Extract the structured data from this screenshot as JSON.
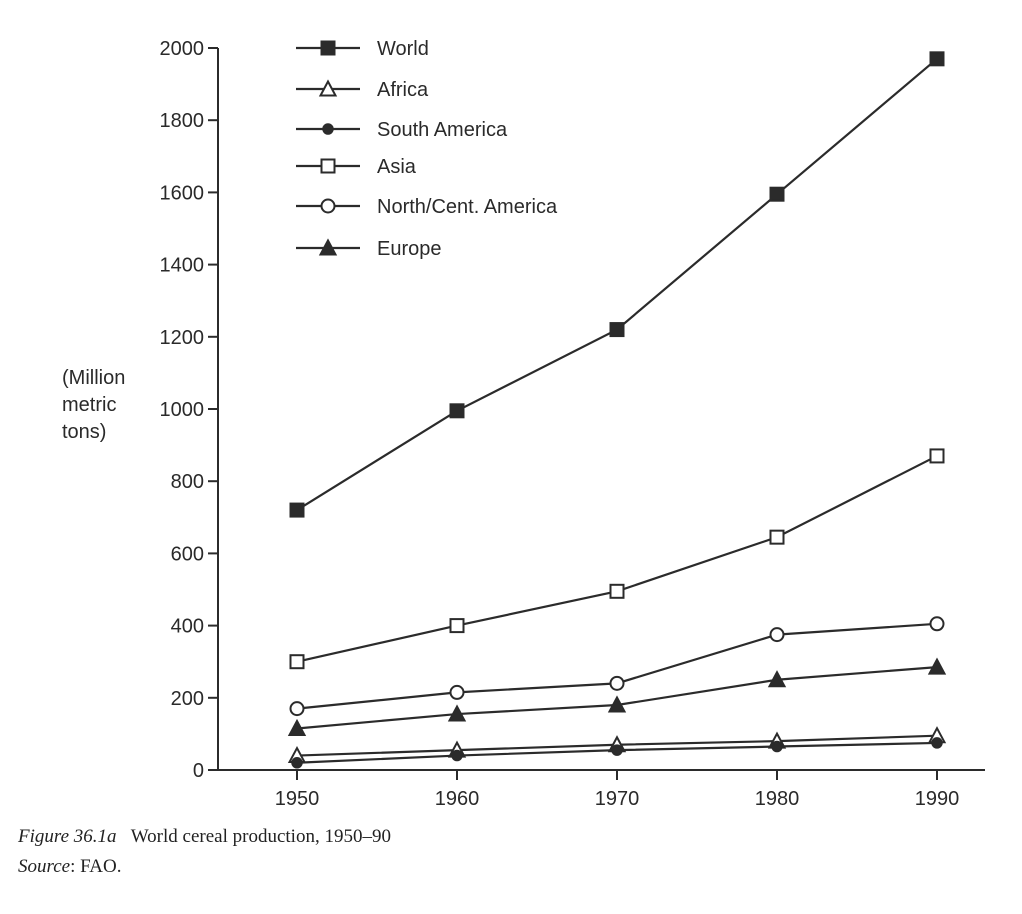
{
  "chart_data": {
    "type": "line",
    "x": [
      1950,
      1960,
      1970,
      1980,
      1990
    ],
    "xticks": [
      "1950",
      "1960",
      "1970",
      "1980",
      "1990"
    ],
    "xlim": [
      1945,
      1993
    ],
    "ylim": [
      0,
      2000
    ],
    "yticks": [
      "0",
      "200",
      "400",
      "600",
      "800",
      "1000",
      "1200",
      "1400",
      "1600",
      "1800",
      "2000"
    ],
    "ylabel_lines": [
      "(Million",
      "metric",
      "tons)"
    ],
    "legend_position": "top-left",
    "series": [
      {
        "name": "World",
        "marker": "filled-square",
        "values": [
          720,
          995,
          1220,
          1595,
          1970
        ]
      },
      {
        "name": "Africa",
        "marker": "open-triangle",
        "values": [
          40,
          55,
          70,
          80,
          95
        ]
      },
      {
        "name": "South America",
        "marker": "filled-circle",
        "values": [
          20,
          40,
          55,
          65,
          75
        ]
      },
      {
        "name": "Asia",
        "marker": "open-square",
        "values": [
          300,
          400,
          495,
          645,
          870
        ]
      },
      {
        "name": "North/Cent. America",
        "marker": "open-circle",
        "values": [
          170,
          215,
          240,
          375,
          405
        ]
      },
      {
        "name": "Europe",
        "marker": "filled-triangle",
        "values": [
          115,
          155,
          180,
          250,
          285
        ]
      }
    ],
    "line_color": "#2b2b2b"
  },
  "caption": {
    "label": "Figure 36.1a",
    "text": "World cereal production, 1950–90",
    "source_label": "Source",
    "source_text": ": FAO."
  }
}
